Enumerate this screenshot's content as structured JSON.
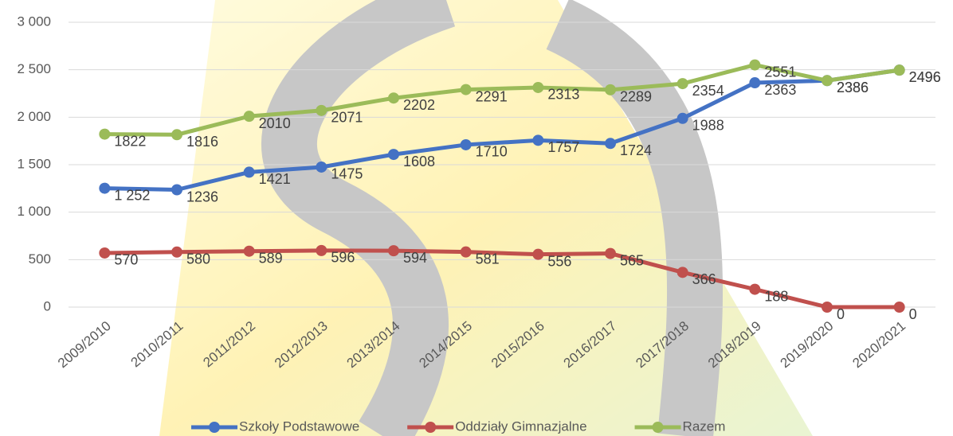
{
  "chart_data": {
    "type": "line",
    "categories": [
      "2009/2010",
      "2010/2011",
      "2011/2012",
      "2012/2013",
      "2013/2014",
      "2014/2015",
      "2015/2016",
      "2016/2017",
      "2017/2018",
      "2018/2019",
      "2019/2020",
      "2020/2021"
    ],
    "series": [
      {
        "name": "Szkoły Podstawowe",
        "color": "#4472c4",
        "values": [
          1252,
          1236,
          1421,
          1475,
          1608,
          1710,
          1757,
          1724,
          1988,
          2363,
          2386,
          2496
        ],
        "value_labels": [
          "1 252",
          "1236",
          "1421",
          "1475",
          "1608",
          "1710",
          "1757",
          "1724",
          "1988",
          "2363",
          "2386",
          "2496"
        ]
      },
      {
        "name": "Oddziały Gimnazjalne",
        "color": "#c0504d",
        "values": [
          570,
          580,
          589,
          596,
          594,
          581,
          556,
          565,
          366,
          188,
          0,
          0
        ]
      },
      {
        "name": "Razem",
        "color": "#9bbb59",
        "values": [
          1822,
          1816,
          2010,
          2071,
          2202,
          2291,
          2313,
          2289,
          2354,
          2551,
          2386,
          2496
        ]
      }
    ],
    "ylim": [
      0,
      3000
    ],
    "yticks": [
      0,
      500,
      {
        "value": 1000,
        "label": "1 000"
      },
      {
        "value": 1500,
        "label": "1 500"
      },
      {
        "value": 2000,
        "label": "2 000"
      },
      {
        "value": 2500,
        "label": "2 500"
      },
      {
        "value": 3000,
        "label": "3 000"
      }
    ],
    "grid": true,
    "legend": "bottom"
  }
}
